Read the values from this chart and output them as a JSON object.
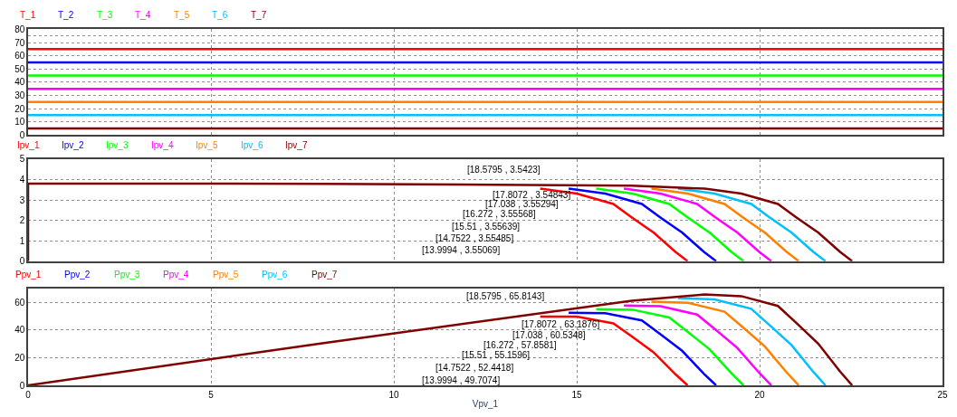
{
  "chart_data": [
    {
      "type": "line",
      "xlim": [
        0,
        25
      ],
      "xticks": [
        0,
        5,
        10,
        15,
        20,
        25
      ],
      "ylim": [
        0,
        80
      ],
      "yticks": [
        0,
        {
          "value": 5,
          "label": null
        },
        10,
        {
          "value": 15,
          "label": null
        },
        20,
        {
          "value": 25,
          "label": null
        },
        30,
        {
          "value": 35,
          "label": null
        },
        40,
        {
          "value": 45,
          "label": null
        },
        50,
        {
          "value": 55,
          "label": null
        },
        60,
        {
          "value": 65,
          "label": null
        },
        70,
        {
          "value": 75,
          "label": null
        },
        80
      ],
      "grid": true,
      "legend": "top left",
      "tick_labels": "y",
      "x": [
        0,
        25
      ],
      "series": [
        {
          "name": "T_1",
          "color": "#ff0000",
          "values": [
            65,
            65
          ]
        },
        {
          "name": "T_2",
          "color": "#0000ff",
          "values": [
            55,
            55
          ]
        },
        {
          "name": "T_3",
          "color": "#00ff00",
          "values": [
            45,
            45
          ]
        },
        {
          "name": "T_4",
          "color": "#ff00ff",
          "values": [
            35,
            35
          ]
        },
        {
          "name": "T_5",
          "color": "#ff8000",
          "values": [
            25,
            25
          ]
        },
        {
          "name": "T_6",
          "color": "#00c0ff",
          "values": [
            15,
            15
          ]
        },
        {
          "name": "T_7",
          "color": "#800000",
          "values": [
            5,
            5
          ]
        }
      ]
    },
    {
      "type": "line",
      "xlim": [
        0,
        25
      ],
      "xticks": [
        0,
        5,
        10,
        15,
        20,
        25
      ],
      "ylim": [
        0,
        5
      ],
      "yticks": [
        0,
        1,
        2,
        3,
        4,
        5
      ],
      "grid": true,
      "legend": "top left",
      "tick_labels": "y",
      "annotations": [
        "[18.5795 , 3.5423]",
        "[17.8072 , 3.54843]",
        "[17.038 , 3.55294]",
        "[16.272 , 3.55568]",
        "[15.51 , 3.55639]",
        "[14.7522 , 3.55485]",
        "[13.9994 , 3.55069]"
      ],
      "series": [
        {
          "name": "Ipv_1",
          "color": "#ff0000",
          "x": [
            14,
            15,
            16,
            16.5,
            17.1,
            17.7,
            18.03
          ],
          "values": [
            3.55,
            3.31,
            2.8,
            2.15,
            1.4,
            0.45,
            0
          ]
        },
        {
          "name": "Ipv_2",
          "color": "#0000ff",
          "x": [
            14.78,
            15.78,
            16.78,
            17.28,
            17.88,
            18.48,
            18.81
          ],
          "values": [
            3.55,
            3.31,
            2.8,
            2.15,
            1.4,
            0.45,
            0
          ]
        },
        {
          "name": "Ipv_3",
          "color": "#00ff00",
          "x": [
            15.53,
            16.53,
            17.53,
            18.03,
            18.63,
            19.23,
            19.56
          ],
          "values": [
            3.55,
            3.31,
            2.8,
            2.15,
            1.4,
            0.45,
            0
          ]
        },
        {
          "name": "Ipv_4",
          "color": "#ff00ff",
          "x": [
            16.29,
            17.29,
            18.29,
            18.79,
            19.39,
            19.99,
            20.32
          ],
          "values": [
            3.55,
            3.31,
            2.8,
            2.15,
            1.4,
            0.45,
            0
          ]
        },
        {
          "name": "Ipv_5",
          "color": "#ff8000",
          "x": [
            17.04,
            18.04,
            19.04,
            19.54,
            20.14,
            20.74,
            21.07
          ],
          "values": [
            3.55,
            3.31,
            2.8,
            2.15,
            1.4,
            0.45,
            0
          ]
        },
        {
          "name": "Ipv_6",
          "color": "#00c0ff",
          "x": [
            17.77,
            18.77,
            19.77,
            20.27,
            20.87,
            21.47,
            21.8
          ],
          "values": [
            3.55,
            3.31,
            2.8,
            2.15,
            1.4,
            0.45,
            0
          ]
        },
        {
          "name": "Ipv_7",
          "color": "#800000",
          "x": [
            0,
            0,
            8,
            16.5,
            18.5,
            19.5,
            20.5,
            21,
            21.6,
            22.2,
            22.53
          ],
          "values": [
            0,
            3.8,
            3.79,
            3.7,
            3.55,
            3.31,
            2.8,
            2.15,
            1.4,
            0.45,
            0
          ]
        }
      ]
    },
    {
      "type": "line",
      "xlim": [
        0,
        25
      ],
      "xticks": [
        0,
        5,
        10,
        15,
        20,
        25
      ],
      "ylim": [
        0,
        70
      ],
      "yticks": [
        0,
        20,
        40,
        60
      ],
      "grid": true,
      "legend": "top left",
      "xlabel": "Vpv_1",
      "annotations": [
        "[18.5795 , 65.8143]",
        "[17.8072 , 63.1876]",
        "[17.038 , 60.5348]",
        "[16.272 , 57.8581]",
        "[15.51 , 55.1596]",
        "[14.7522 , 52.4418]",
        "[13.9994 , 49.7074]"
      ],
      "series": [
        {
          "name": "Ppv_1",
          "color": "#ff0000",
          "x": [
            14,
            15,
            16,
            16.5,
            17.1,
            17.7,
            18.03
          ],
          "values": [
            49.7,
            49.7,
            44.8,
            35.5,
            23.9,
            8.0,
            0
          ]
        },
        {
          "name": "Ppv_2",
          "color": "#0000ff",
          "x": [
            14.78,
            15.78,
            16.78,
            17.28,
            17.88,
            18.48,
            18.81
          ],
          "values": [
            52.5,
            52.2,
            47.0,
            37.2,
            25.0,
            8.3,
            0
          ]
        },
        {
          "name": "Ppv_3",
          "color": "#00ff00",
          "x": [
            15.53,
            16.53,
            17.53,
            18.03,
            18.63,
            19.23,
            19.56
          ],
          "values": [
            55.1,
            54.7,
            49.1,
            38.8,
            26.1,
            8.7,
            0
          ]
        },
        {
          "name": "Ppv_4",
          "color": "#ff00ff",
          "x": [
            16.29,
            17.29,
            18.29,
            18.79,
            19.39,
            19.99,
            20.32
          ],
          "values": [
            57.8,
            57.2,
            51.2,
            40.4,
            27.1,
            9.0,
            0
          ]
        },
        {
          "name": "Ppv_5",
          "color": "#ff8000",
          "x": [
            17.04,
            18.04,
            19.04,
            19.54,
            20.14,
            20.74,
            21.07
          ],
          "values": [
            60.5,
            59.7,
            53.3,
            42.0,
            28.2,
            9.3,
            0
          ]
        },
        {
          "name": "Ppv_6",
          "color": "#00c0ff",
          "x": [
            17.77,
            18.77,
            19.77,
            20.27,
            20.87,
            21.47,
            21.8
          ],
          "values": [
            63.1,
            62.1,
            55.4,
            43.6,
            29.2,
            9.7,
            0
          ]
        },
        {
          "name": "Ppv_7",
          "color": "#800000",
          "x": [
            0,
            8,
            16.5,
            18.5,
            19.5,
            20.5,
            21,
            21.6,
            22.2,
            22.53
          ],
          "values": [
            0,
            30.3,
            61.1,
            65.7,
            64.5,
            57.4,
            45.2,
            30.2,
            10.0,
            0
          ]
        }
      ]
    }
  ]
}
